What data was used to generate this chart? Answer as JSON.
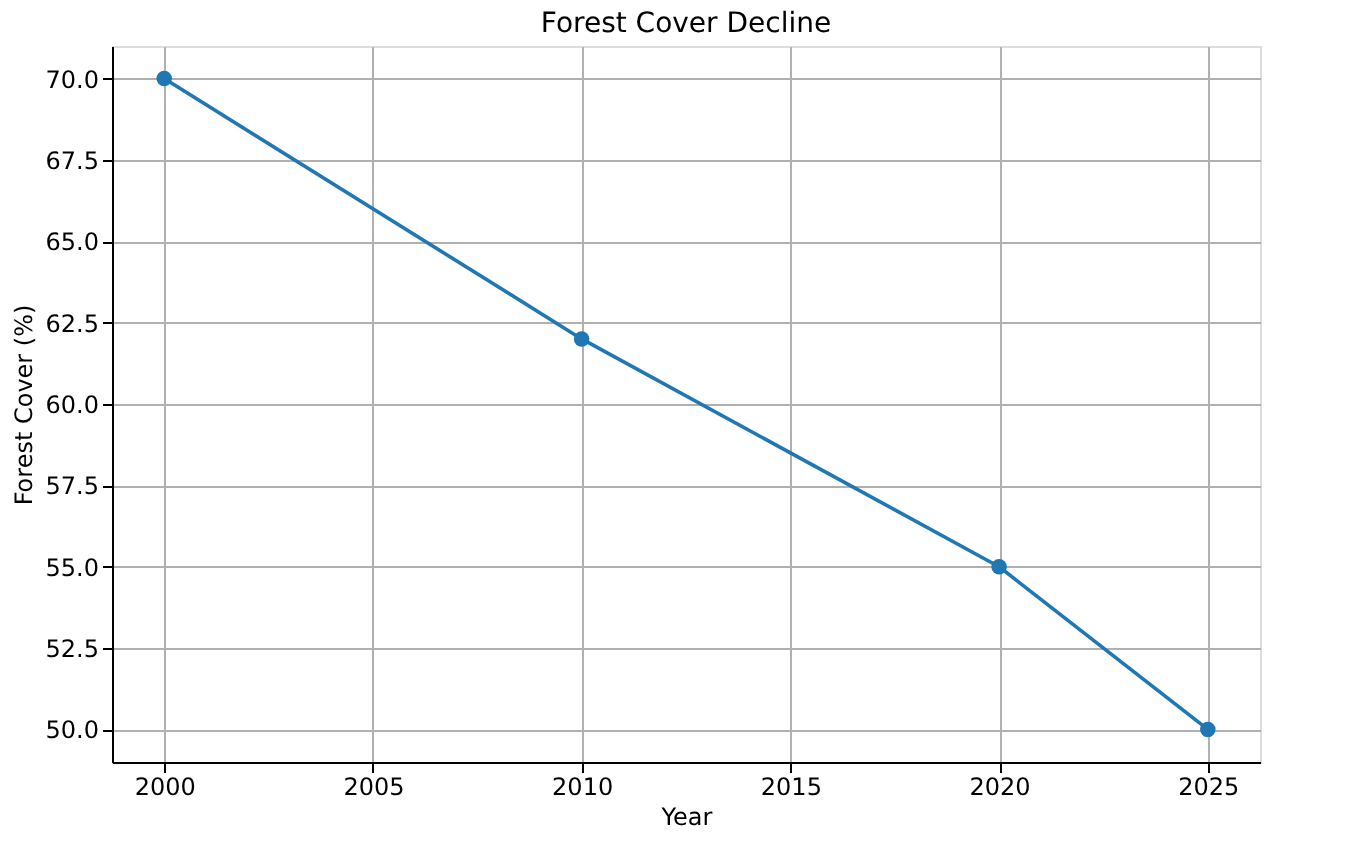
{
  "chart_data": {
    "type": "line",
    "title": "Forest Cover Decline",
    "xlabel": "Year",
    "ylabel": "Forest Cover (%)",
    "x": [
      2000,
      2010,
      2020,
      2025
    ],
    "series": [
      {
        "color": "#1f77b4",
        "values": [
          70,
          62,
          55,
          50
        ]
      }
    ],
    "xlim": [
      1998.75,
      2026.25
    ],
    "xticks": [
      2000,
      2005,
      2010,
      2015,
      2020,
      2025
    ],
    "ylim": [
      49,
      71
    ],
    "yticks": [
      {
        "value": 50,
        "label": "50.0"
      },
      {
        "value": 52.5,
        "label": "52.5"
      },
      {
        "value": 55,
        "label": "55.0"
      },
      {
        "value": 57.5,
        "label": "57.5"
      },
      {
        "value": 60,
        "label": "60.0"
      },
      {
        "value": 62.5,
        "label": "62.5"
      },
      {
        "value": 65,
        "label": "65.0"
      },
      {
        "value": 67.5,
        "label": "67.5"
      },
      {
        "value": 70,
        "label": "70.0"
      }
    ],
    "grid": true,
    "marker": "circle",
    "line_style": "solid"
  }
}
